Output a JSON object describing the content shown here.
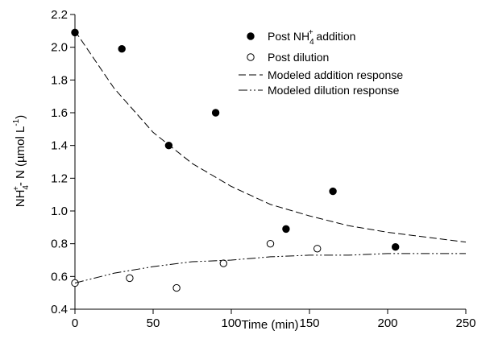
{
  "chart_data": {
    "type": "scatter",
    "x_label": "Time (min)",
    "y_label": [
      "NH",
      "4",
      "+",
      "- N (µmol L",
      "-1",
      ")"
    ],
    "xlim": [
      0,
      250
    ],
    "xticks": [
      0,
      50,
      100,
      150,
      200,
      250
    ],
    "ylim": [
      0.4,
      2.2
    ],
    "yticks": [
      0.4,
      0.6,
      0.8,
      {
        "value": 1.0,
        "label": "1.0"
      },
      1.2,
      1.4,
      1.6,
      1.8,
      {
        "value": 2.0,
        "label": "2.0"
      },
      2.2
    ],
    "series": [
      {
        "name": [
          "Post NH",
          "4",
          "+",
          " addition"
        ],
        "marker": "filled",
        "color": "#000000",
        "x": [
          0,
          30,
          60,
          90,
          135,
          165,
          205
        ],
        "values": [
          2.09,
          1.99,
          1.4,
          1.6,
          0.89,
          1.12,
          0.78
        ]
      },
      {
        "name": [
          "Post dilution"
        ],
        "marker": "open",
        "color": "#000000",
        "x": [
          0,
          35,
          65,
          95,
          125,
          155
        ],
        "values": [
          0.56,
          0.59,
          0.53,
          0.68,
          0.8,
          0.77
        ]
      },
      {
        "name": [
          "Modeled addition response"
        ],
        "line": "dashed",
        "color": "#000000",
        "x": [
          0,
          25,
          50,
          75,
          100,
          125,
          150,
          175,
          200,
          225,
          250
        ],
        "values": [
          2.1,
          1.75,
          1.48,
          1.29,
          1.15,
          1.04,
          0.97,
          0.91,
          0.87,
          0.84,
          0.81
        ]
      },
      {
        "name": [
          "Modeled dilution response"
        ],
        "line": "dashdotdot",
        "color": "#000000",
        "x": [
          0,
          25,
          50,
          75,
          100,
          125,
          150,
          175,
          200,
          225,
          250
        ],
        "values": [
          0.56,
          0.62,
          0.66,
          0.69,
          0.7,
          0.72,
          0.73,
          0.73,
          0.74,
          0.74,
          0.74
        ]
      }
    ]
  }
}
